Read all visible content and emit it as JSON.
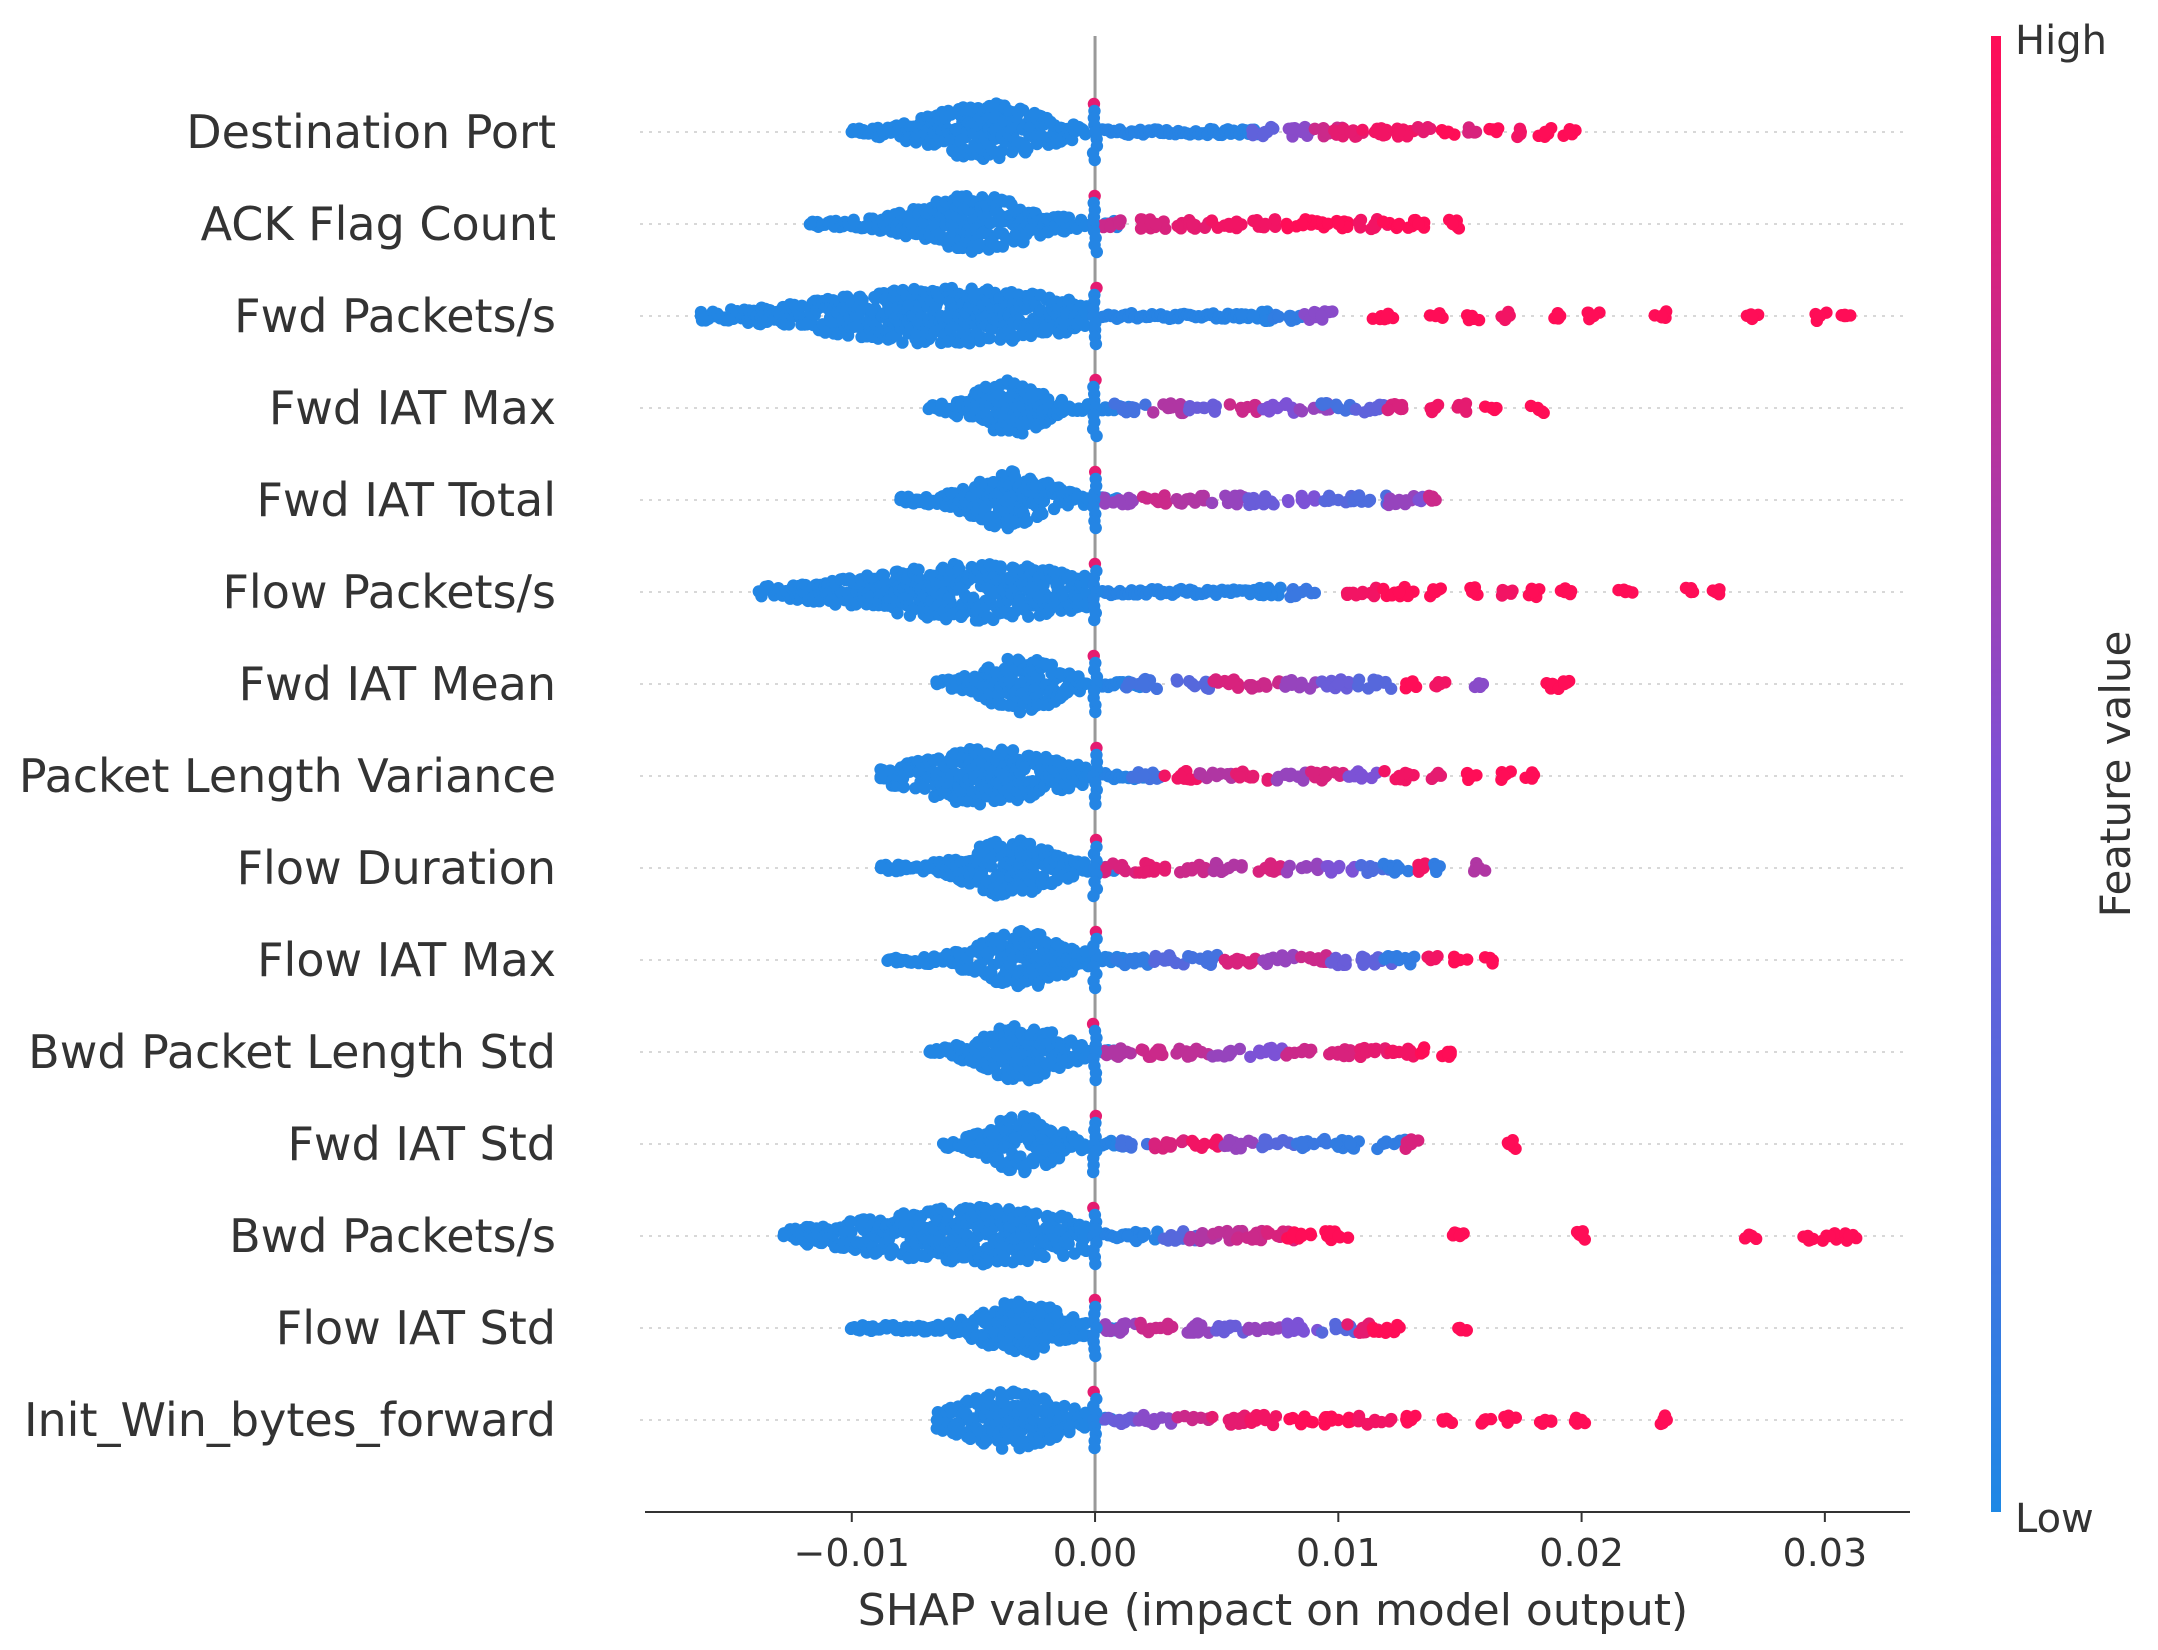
{
  "chart_data": {
    "type": "scatter",
    "subtype": "shap-beeswarm-summary",
    "xlabel": "SHAP value (impact on model output)",
    "xlim": [
      -0.0185,
      0.0335
    ],
    "xticks": [
      -0.01,
      0.0,
      0.01,
      0.02,
      0.03
    ],
    "xtick_labels": [
      "−0.01",
      "0.00",
      "0.01",
      "0.02",
      "0.03"
    ],
    "colorbar": {
      "title": "Feature value",
      "high_label": "High",
      "low_label": "Low",
      "low_color": "#1E88E5",
      "high_color": "#FF0D57"
    },
    "features": [
      {
        "name": "Destination Port",
        "neg_min": -0.01,
        "neg_peak": -0.0045,
        "neg_width": 0.002,
        "pos_points": [
          0.007,
          0.0085,
          0.0095,
          0.0105,
          0.0115,
          0.0125,
          0.0135,
          0.0145,
          0.0155,
          0.0165,
          0.0175,
          0.0185,
          0.0195
        ],
        "pos_colors": [
          0.35,
          0.55,
          0.8,
          0.9,
          0.95,
          0.95,
          0.9,
          1,
          0.85,
          1,
          0.95,
          1,
          1
        ]
      },
      {
        "name": "ACK Flag Count",
        "neg_min": -0.0117,
        "neg_peak": -0.005,
        "neg_width": 0.002,
        "pos_points": [
          0.001,
          0.0025,
          0.004,
          0.0055,
          0.007,
          0.0085,
          0.01,
          0.0115,
          0.0125,
          0.0133,
          0.0147
        ],
        "pos_colors": [
          0.8,
          0.85,
          0.9,
          0.95,
          0.95,
          1,
          1,
          0.95,
          1,
          1,
          1
        ]
      },
      {
        "name": "Fwd Packets/s",
        "neg_min": -0.0162,
        "neg_peak": -0.006,
        "neg_width": 0.0045,
        "pos_points": [
          0.0065,
          0.008,
          0.0093,
          0.012,
          0.014,
          0.0155,
          0.017,
          0.019,
          0.0205,
          0.0233,
          0.027,
          0.0298,
          0.0308
        ],
        "pos_colors": [
          0.05,
          0.1,
          0.55,
          1,
          1,
          1,
          0.95,
          1,
          1,
          1,
          1,
          1,
          1
        ]
      },
      {
        "name": "Fwd IAT Max",
        "neg_min": -0.0068,
        "neg_peak": -0.0035,
        "neg_width": 0.0012,
        "pos_points": [
          0.0015,
          0.003,
          0.0045,
          0.006,
          0.0075,
          0.009,
          0.01,
          0.0113,
          0.0125,
          0.014,
          0.0152,
          0.0163,
          0.0182
        ],
        "pos_colors": [
          0.2,
          0.7,
          0.4,
          0.8,
          0.5,
          0.6,
          0.2,
          0.35,
          0.85,
          0.95,
          0.9,
          1,
          1
        ]
      },
      {
        "name": "Fwd IAT Total",
        "neg_min": -0.008,
        "neg_peak": -0.0035,
        "neg_width": 0.0014,
        "pos_points": [
          0.001,
          0.0025,
          0.004,
          0.0055,
          0.007,
          0.0085,
          0.01,
          0.0113,
          0.0125,
          0.0133,
          0.014
        ],
        "pos_colors": [
          0.6,
          0.8,
          0.7,
          0.6,
          0.4,
          0.5,
          0.3,
          0.25,
          0.6,
          0.5,
          0.8
        ]
      },
      {
        "name": "Flow Packets/s",
        "neg_min": -0.0138,
        "neg_peak": -0.005,
        "neg_width": 0.004,
        "pos_points": [
          0.007,
          0.0085,
          0.011,
          0.0125,
          0.014,
          0.0155,
          0.017,
          0.018,
          0.0193,
          0.0218,
          0.0245,
          0.0255
        ],
        "pos_colors": [
          0.05,
          0.15,
          0.95,
          1,
          1,
          1,
          0.95,
          1,
          1,
          1,
          1,
          1
        ]
      },
      {
        "name": "Fwd IAT Mean",
        "neg_min": -0.0065,
        "neg_peak": -0.003,
        "neg_width": 0.0013,
        "pos_points": [
          0.002,
          0.004,
          0.0055,
          0.007,
          0.0085,
          0.01,
          0.0115,
          0.013,
          0.0142,
          0.0158,
          0.0188,
          0.0193
        ],
        "pos_colors": [
          0.2,
          0.3,
          0.85,
          0.8,
          0.6,
          0.4,
          0.3,
          1,
          0.95,
          0.55,
          1,
          1
        ]
      },
      {
        "name": "Packet Length Variance",
        "neg_min": -0.0088,
        "neg_peak": -0.0045,
        "neg_width": 0.0025,
        "pos_points": [
          0.002,
          0.0035,
          0.005,
          0.0065,
          0.008,
          0.0095,
          0.011,
          0.0125,
          0.014,
          0.0155,
          0.0168,
          0.018
        ],
        "pos_colors": [
          0.2,
          0.95,
          0.7,
          0.9,
          0.6,
          0.85,
          0.5,
          0.95,
          0.9,
          1,
          1,
          1
        ]
      },
      {
        "name": "Flow Duration",
        "neg_min": -0.0088,
        "neg_peak": -0.0035,
        "neg_width": 0.0015,
        "pos_points": [
          0.001,
          0.0025,
          0.004,
          0.0055,
          0.007,
          0.0085,
          0.01,
          0.0115,
          0.0125,
          0.0135,
          0.014,
          0.0158
        ],
        "pos_colors": [
          0.85,
          0.9,
          0.8,
          0.7,
          0.85,
          0.6,
          0.5,
          0.25,
          0.1,
          0.95,
          0.1,
          0.7
        ]
      },
      {
        "name": "Flow IAT Max",
        "neg_min": -0.0085,
        "neg_peak": -0.003,
        "neg_width": 0.0015,
        "pos_points": [
          0.0015,
          0.003,
          0.0045,
          0.006,
          0.0075,
          0.009,
          0.0103,
          0.0115,
          0.0125,
          0.0138,
          0.015,
          0.0163
        ],
        "pos_colors": [
          0.1,
          0.3,
          0.2,
          0.85,
          0.6,
          0.8,
          0.4,
          0.35,
          0.1,
          0.95,
          1,
          1
        ]
      },
      {
        "name": "Bwd Packet Length Std",
        "neg_min": -0.0068,
        "neg_peak": -0.003,
        "neg_width": 0.0014,
        "pos_points": [
          0.001,
          0.0025,
          0.004,
          0.0055,
          0.007,
          0.0085,
          0.01,
          0.0115,
          0.0125,
          0.0135,
          0.0145
        ],
        "pos_colors": [
          0.7,
          0.8,
          0.75,
          0.6,
          0.5,
          0.8,
          0.85,
          0.9,
          0.95,
          1,
          1
        ]
      },
      {
        "name": "Fwd IAT Std",
        "neg_min": -0.0062,
        "neg_peak": -0.003,
        "neg_width": 0.0012,
        "pos_points": [
          0.0015,
          0.003,
          0.0045,
          0.006,
          0.0075,
          0.009,
          0.0105,
          0.0123,
          0.013,
          0.017
        ],
        "pos_colors": [
          0.2,
          0.85,
          0.95,
          0.6,
          0.3,
          0.15,
          0.1,
          0.1,
          0.85,
          1
        ]
      },
      {
        "name": "Bwd Packets/s",
        "neg_min": -0.0128,
        "neg_peak": -0.005,
        "neg_width": 0.004,
        "pos_points": [
          0.002,
          0.0035,
          0.0045,
          0.0055,
          0.0065,
          0.0075,
          0.0085,
          0.01,
          0.015,
          0.02,
          0.027,
          0.0293,
          0.0302,
          0.031
        ],
        "pos_colors": [
          0.05,
          0.3,
          0.7,
          0.75,
          0.8,
          0.85,
          1,
          1,
          1,
          1,
          1,
          1,
          1,
          1
        ]
      },
      {
        "name": "Flow IAT Std",
        "neg_min": -0.01,
        "neg_peak": -0.003,
        "neg_width": 0.0014,
        "pos_points": [
          0.001,
          0.0025,
          0.004,
          0.0055,
          0.007,
          0.0085,
          0.01,
          0.011,
          0.012,
          0.015
        ],
        "pos_colors": [
          0.6,
          0.8,
          0.6,
          0.4,
          0.6,
          0.5,
          0.3,
          0.9,
          1,
          1
        ]
      },
      {
        "name": "Init_Win_bytes_forward",
        "neg_min": -0.0065,
        "neg_peak": -0.0035,
        "neg_width": 0.0018,
        "pos_points": [
          0.001,
          0.0025,
          0.004,
          0.0055,
          0.007,
          0.0085,
          0.01,
          0.0115,
          0.013,
          0.0145,
          0.016,
          0.017,
          0.0185,
          0.02,
          0.0235
        ],
        "pos_colors": [
          0.4,
          0.55,
          0.8,
          0.9,
          0.95,
          1,
          1,
          0.95,
          1,
          1,
          1,
          1,
          1,
          1,
          1
        ]
      }
    ]
  }
}
